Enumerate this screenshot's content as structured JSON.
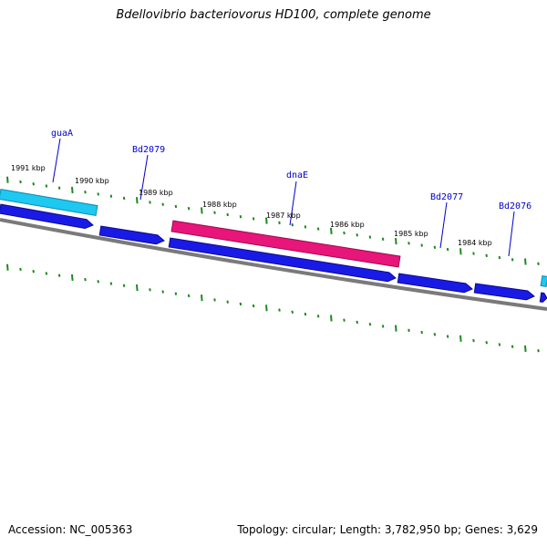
{
  "title": "Bdellovibrio bacteriovorus HD100, complete genome",
  "footer": {
    "accession": "Accession: NC_005363",
    "summary": "Topology: circular; Length: 3,782,950 bp; Genes: 3,629"
  },
  "colors": {
    "tick": "#1e8a1e",
    "gene_forward": "#1a1ae6",
    "gene_highlight": "#e8157a",
    "gene_cyan": "#1ec8f0",
    "backbone": "#7a7a7a",
    "label": "#0000cc"
  },
  "kbp_labels": [
    "1991 kbp",
    "1990 kbp",
    "1989 kbp",
    "1988 kbp",
    "1987 kbp",
    "1986 kbp",
    "1985 kbp",
    "1984 kbp"
  ],
  "gene_labels": [
    "guaA",
    "Bd2079",
    "dnaE",
    "Bd2077",
    "Bd2076"
  ]
}
